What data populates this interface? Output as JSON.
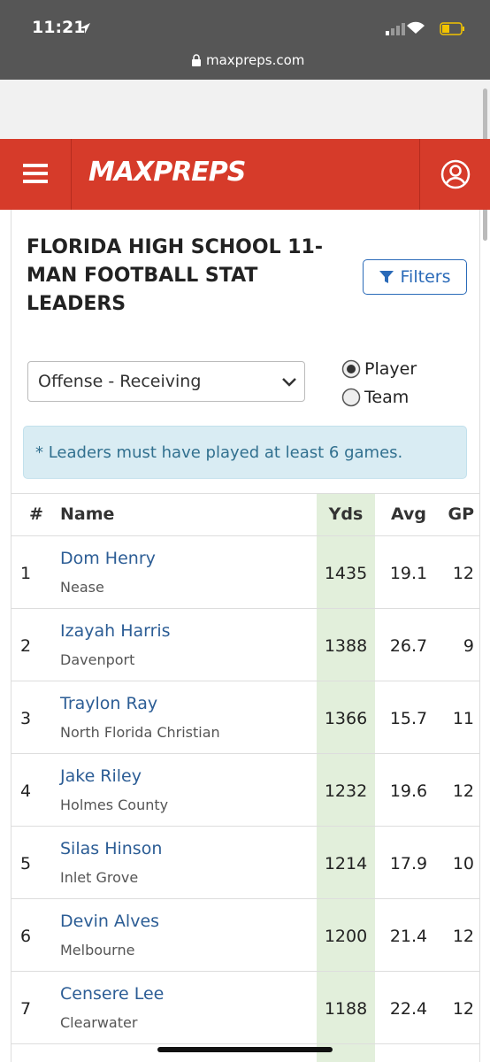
{
  "status_bar": {
    "time": "11:21",
    "url": "maxpreps.com"
  },
  "header": {
    "logo": "MAXPREPS"
  },
  "page": {
    "title": "FLORIDA HIGH SCHOOL 11-MAN FOOTBALL STAT LEADERS",
    "filters_button": "Filters",
    "select": "Offense - Receiving",
    "radio_options": [
      "Player",
      "Team"
    ],
    "notice": "* Leaders must have played at least 6 games."
  },
  "table": {
    "columns": [
      "#",
      "Name",
      "Yds",
      "Avg",
      "GP"
    ],
    "rows": [
      [
        1,
        "Dom Henry",
        "Nease",
        1435,
        19.1,
        12
      ],
      [
        2,
        "Izayah Harris",
        "Davenport",
        1388,
        26.7,
        9
      ],
      [
        3,
        "Traylon Ray",
        "North Florida Christian",
        1366,
        15.7,
        11
      ],
      [
        4,
        "Jake Riley",
        "Holmes County",
        1232,
        19.6,
        12
      ],
      [
        5,
        "Silas Hinson",
        "Inlet Grove",
        1214,
        17.9,
        10
      ],
      [
        6,
        "Devin Alves",
        "Melbourne",
        1200,
        21.4,
        12
      ],
      [
        7,
        "Censere Lee",
        "Clearwater",
        1188,
        22.4,
        12
      ]
    ]
  }
}
